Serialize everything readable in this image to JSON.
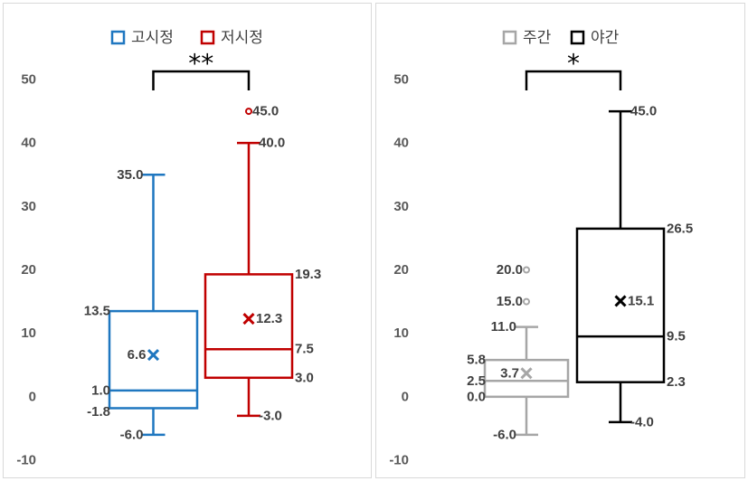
{
  "chart_data": [
    {
      "type": "box",
      "ylim": [
        -10,
        50
      ],
      "yticks": [
        "50",
        "40",
        "30",
        "20",
        "10",
        "0",
        "-10"
      ],
      "grid": false,
      "legend_position": "top",
      "significance": "**",
      "series": [
        {
          "name": "고시정",
          "color": "#1F77C0",
          "min": -6.0,
          "q1": -1.8,
          "median": 1.0,
          "q3": 13.5,
          "max": 35.0,
          "mean": 6.6,
          "outliers": [],
          "labels": {
            "min": "-6.0",
            "q1": "-1.8",
            "median": "1.0",
            "q3": "13.5",
            "max": "35.0",
            "mean": "6.6",
            "outliers": []
          }
        },
        {
          "name": "저시정",
          "color": "#C00000",
          "min": -3.0,
          "q1": 3.0,
          "median": 7.5,
          "q3": 19.3,
          "max": 40.0,
          "mean": 12.3,
          "outliers": [
            45.0
          ],
          "labels": {
            "min": "-3.0",
            "q1": "3.0",
            "median": "7.5",
            "q3": "19.3",
            "max": "40.0",
            "mean": "12.3",
            "outliers": [
              "45.0"
            ]
          }
        }
      ]
    },
    {
      "type": "box",
      "ylim": [
        -10,
        50
      ],
      "yticks": [
        "50",
        "40",
        "30",
        "20",
        "10",
        "0",
        "-10"
      ],
      "grid": false,
      "legend_position": "top",
      "significance": "*",
      "series": [
        {
          "name": "주간",
          "color": "#A6A6A6",
          "min": -6.0,
          "q1": 0.0,
          "median": 2.5,
          "q3": 5.8,
          "max": 11.0,
          "mean": 3.7,
          "outliers": [
            15.0,
            20.0
          ],
          "labels": {
            "min": "-6.0",
            "q1": "0.0",
            "median": "2.5",
            "q3": "5.8",
            "max": "11.0",
            "mean": "3.7",
            "outliers": [
              "15.0",
              "20.0"
            ]
          }
        },
        {
          "name": "야간",
          "color": "#000000",
          "min": -4.0,
          "q1": 2.3,
          "median": 9.5,
          "q3": 26.5,
          "max": 45.0,
          "mean": 15.1,
          "outliers": [],
          "labels": {
            "min": "-4.0",
            "q1": "2.3",
            "median": "9.5",
            "q3": "26.5",
            "max": "45.0",
            "mean": "15.1",
            "outliers": []
          }
        }
      ]
    }
  ]
}
